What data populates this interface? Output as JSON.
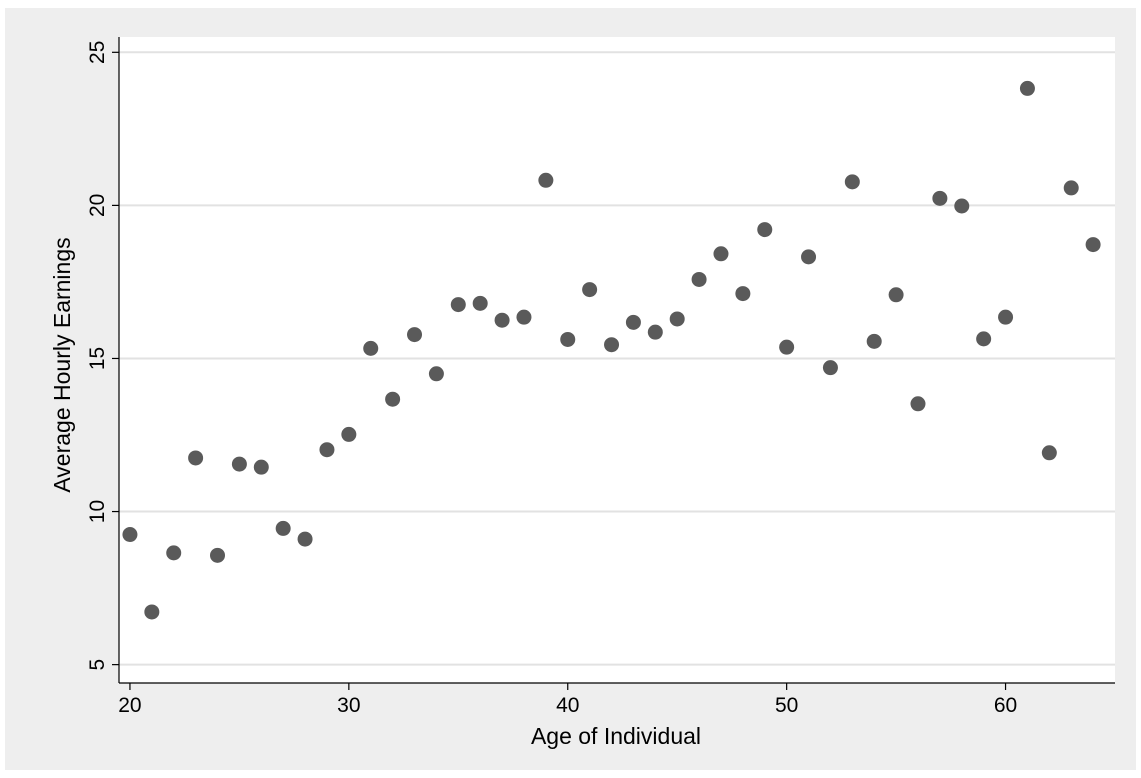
{
  "chart_data": {
    "type": "scatter",
    "title": "",
    "xlabel": "Age of Individual",
    "ylabel": "Average Hourly Earnings",
    "xlim": [
      19.5,
      65
    ],
    "ylim": [
      4.4,
      25.5
    ],
    "xticks": [
      20,
      30,
      40,
      50,
      60
    ],
    "yticks": [
      5,
      10,
      15,
      20,
      25
    ],
    "grid": "horizontal",
    "legend": "none",
    "colors": {
      "background": "#eeeeee",
      "plot": "#ffffff",
      "grid": "#e2e2e2",
      "marker": "#5a5a5a",
      "axis": "#000000"
    },
    "x": [
      20,
      21,
      22,
      23,
      24,
      25,
      26,
      27,
      28,
      29,
      30,
      31,
      32,
      33,
      34,
      35,
      36,
      37,
      38,
      39,
      40,
      41,
      42,
      43,
      44,
      45,
      46,
      47,
      48,
      49,
      50,
      51,
      52,
      53,
      54,
      55,
      56,
      57,
      58,
      59,
      60,
      61,
      62,
      63,
      64
    ],
    "y": [
      9.25,
      6.72,
      8.65,
      11.75,
      8.57,
      11.55,
      11.45,
      9.45,
      9.1,
      12.02,
      12.52,
      15.33,
      13.67,
      15.78,
      14.5,
      16.76,
      16.8,
      16.25,
      16.35,
      20.82,
      15.62,
      17.25,
      15.45,
      16.18,
      15.86,
      16.29,
      17.58,
      18.42,
      17.12,
      19.21,
      15.37,
      18.32,
      14.7,
      20.77,
      15.56,
      17.08,
      13.52,
      20.23,
      19.98,
      15.64,
      16.35,
      23.82,
      11.92,
      20.57,
      18.72
    ]
  }
}
